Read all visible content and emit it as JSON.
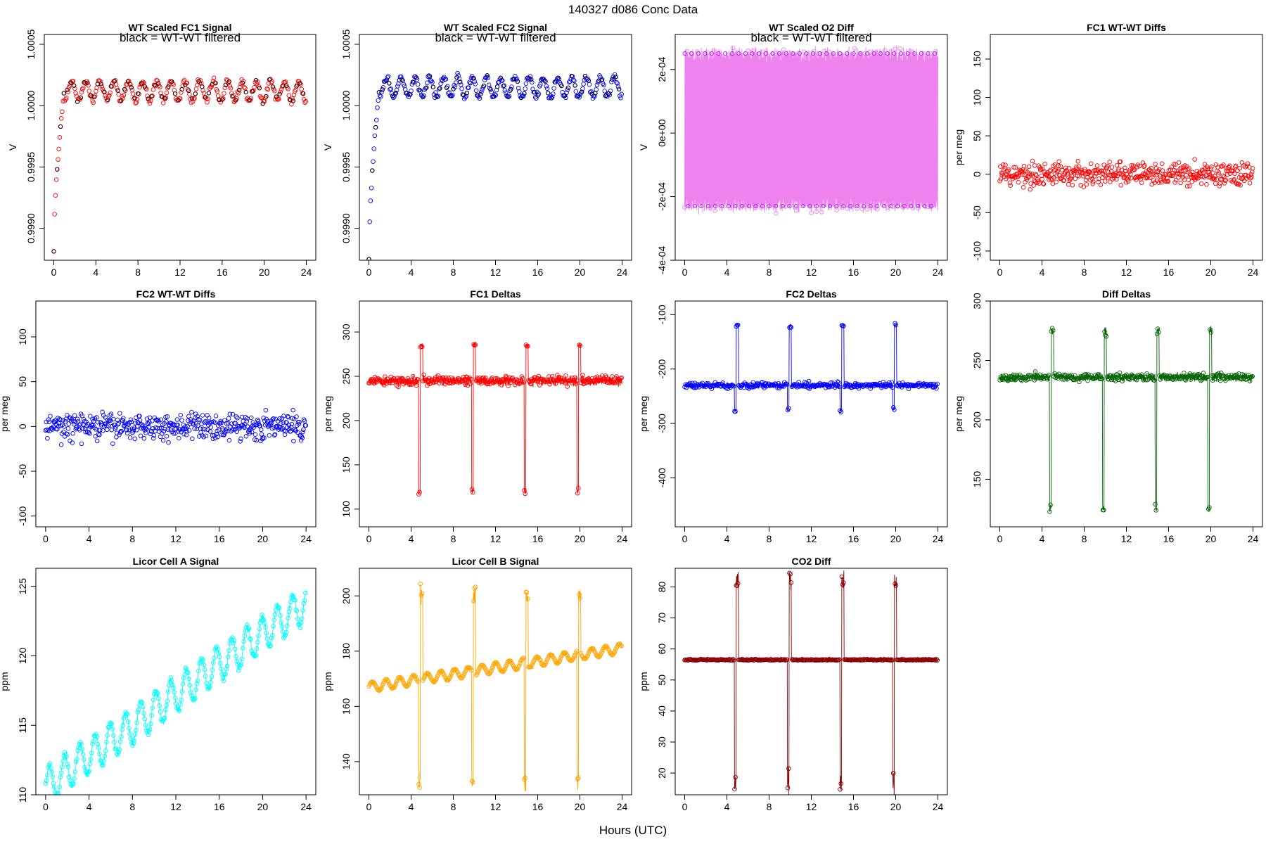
{
  "page": {
    "title": "140327    d086    Conc Data",
    "xlabel": "Hours (UTC)"
  },
  "chart_data": [
    {
      "id": "p1",
      "type": "scatter",
      "title": "WT Scaled FC1 Signal",
      "note": "black = WT-WT filtered",
      "ylabel": "V",
      "xlim": [
        -0.9,
        24.9
      ],
      "ylim": [
        0.99874,
        1.00058
      ],
      "xticks": [
        "0",
        "4",
        "8",
        "12",
        "16",
        "20",
        "24"
      ],
      "yticks": [
        "0.9990",
        "0.9995",
        "1.0000",
        "1.0005"
      ],
      "ytick_values": [
        0.999,
        0.9995,
        1.0,
        1.0005
      ],
      "series": [
        {
          "name": "FC1 signal",
          "color": "#ff0000",
          "shape": "rise-osc",
          "base": 1.00012,
          "amp": 8e-05,
          "noise": 4e-05,
          "start": 0.99882,
          "rise": 1.0
        },
        {
          "name": "WT-WT filtered",
          "color": "#000000"
        }
      ]
    },
    {
      "id": "p2",
      "type": "scatter",
      "title": "WT Scaled FC2 Signal",
      "note": "black = WT-WT filtered",
      "ylabel": "V",
      "xlim": [
        -0.9,
        24.9
      ],
      "ylim": [
        0.99874,
        1.00058
      ],
      "xticks": [
        "0",
        "4",
        "8",
        "12",
        "16",
        "20",
        "24"
      ],
      "yticks": [
        "0.9990",
        "0.9995",
        "1.0000",
        "1.0005"
      ],
      "ytick_values": [
        0.999,
        0.9995,
        1.0,
        1.0005
      ],
      "series": [
        {
          "name": "FC2 signal",
          "color": "#0000ff",
          "shape": "rise-osc",
          "base": 1.00015,
          "amp": 8e-05,
          "noise": 4e-05,
          "start": 0.99875,
          "rise": 1.0
        },
        {
          "name": "WT-WT filtered",
          "color": "#000000"
        }
      ]
    },
    {
      "id": "p3",
      "type": "scatter",
      "title": "WT Scaled O2 Diff",
      "note": "black = WT-WT filtered",
      "ylabel": "V",
      "xlim": [
        -0.9,
        24.9
      ],
      "ylim": [
        -0.0004,
        0.00031
      ],
      "xticks": [
        "0",
        "4",
        "8",
        "12",
        "16",
        "20",
        "24"
      ],
      "yticks": [
        "-4e-04",
        "-2e-04",
        "0e+00",
        "2e-04"
      ],
      "ytick_values": [
        -0.0004,
        -0.0002,
        0,
        0.0002
      ],
      "series": [
        {
          "name": "O2 diff",
          "color": "#ee82ee",
          "shape": "band",
          "hi": 0.00025,
          "lo": -0.00023,
          "noise": 3e-05
        },
        {
          "name": "WT-WT filtered",
          "color": "#a020f0"
        }
      ]
    },
    {
      "id": "p4",
      "type": "scatter",
      "title": "FC1 WT-WT Diffs",
      "ylabel": "per meg",
      "xlim": [
        -0.9,
        24.9
      ],
      "ylim": [
        -112,
        182
      ],
      "xticks": [
        "0",
        "4",
        "8",
        "12",
        "16",
        "20",
        "24"
      ],
      "yticks": [
        "-100",
        "-50",
        "0",
        "50",
        "100",
        "150"
      ],
      "ytick_values": [
        -100,
        -50,
        0,
        50,
        100,
        150
      ],
      "series": [
        {
          "name": "FC1 diffs",
          "color": "#ff0000",
          "shape": "scatter",
          "base": 0,
          "noise": 22
        }
      ]
    },
    {
      "id": "p5",
      "type": "scatter",
      "title": "FC2 WT-WT Diffs",
      "ylabel": "per meg",
      "xlim": [
        -0.9,
        24.9
      ],
      "ylim": [
        -112,
        140
      ],
      "xticks": [
        "0",
        "4",
        "8",
        "12",
        "16",
        "20",
        "24"
      ],
      "yticks": [
        "-100",
        "-50",
        "0",
        "50",
        "100"
      ],
      "ytick_values": [
        -100,
        -50,
        0,
        50,
        100
      ],
      "series": [
        {
          "name": "FC2 diffs",
          "color": "#0000ff",
          "shape": "scatter",
          "base": 0,
          "noise": 22
        }
      ]
    },
    {
      "id": "p6",
      "type": "line",
      "title": "FC1 Deltas",
      "ylabel": "per meg",
      "xlim": [
        -0.9,
        24.9
      ],
      "ylim": [
        80,
        335
      ],
      "xticks": [
        "0",
        "4",
        "8",
        "12",
        "16",
        "20",
        "24"
      ],
      "yticks": [
        "100",
        "150",
        "200",
        "250",
        "300"
      ],
      "ytick_values": [
        100,
        150,
        200,
        250,
        300
      ],
      "series": [
        {
          "name": "FC1 deltas",
          "color": "#ff0000",
          "shape": "spiky",
          "base": 245,
          "noise": 8,
          "spikes": [
            4.8,
            9.8,
            14.8,
            19.8
          ],
          "down": 120,
          "up": 285
        }
      ]
    },
    {
      "id": "p7",
      "type": "line",
      "title": "FC2 Deltas",
      "ylabel": "per meg",
      "xlim": [
        -0.9,
        24.9
      ],
      "ylim": [
        -490,
        -75
      ],
      "xticks": [
        "0",
        "4",
        "8",
        "12",
        "16",
        "20",
        "24"
      ],
      "yticks": [
        "-400",
        "-300",
        "-200",
        "-100"
      ],
      "ytick_values": [
        -400,
        -300,
        -200,
        -100
      ],
      "series": [
        {
          "name": "FC2 deltas",
          "color": "#0000ff",
          "shape": "spiky",
          "base": -230,
          "noise": 8,
          "spikes": [
            4.8,
            9.8,
            14.8,
            19.8
          ],
          "down": -275,
          "up": -120
        }
      ]
    },
    {
      "id": "p8",
      "type": "line",
      "title": "Diff Deltas",
      "ylabel": "per meg",
      "xlim": [
        -0.9,
        24.9
      ],
      "ylim": [
        110,
        300
      ],
      "xticks": [
        "0",
        "4",
        "8",
        "12",
        "16",
        "20",
        "24"
      ],
      "yticks": [
        "150",
        "200",
        "250",
        "300"
      ],
      "ytick_values": [
        150,
        200,
        250,
        300
      ],
      "series": [
        {
          "name": "Diff deltas",
          "color": "#006400",
          "shape": "spiky",
          "base": 236,
          "noise": 5,
          "spikes": [
            4.8,
            9.8,
            14.8,
            19.8
          ],
          "down": 125,
          "up": 275
        }
      ]
    },
    {
      "id": "p9",
      "type": "line",
      "title": "Licor Cell A Signal",
      "ylabel": "ppm",
      "xlim": [
        -0.9,
        24.9
      ],
      "ylim": [
        110,
        126.3
      ],
      "xticks": [
        "0",
        "4",
        "8",
        "12",
        "16",
        "20",
        "24"
      ],
      "yticks": [
        "110",
        "115",
        "120",
        "125"
      ],
      "ytick_values": [
        110,
        115,
        120,
        125
      ],
      "series": [
        {
          "name": "Cell A",
          "color": "#00ffff",
          "shape": "ramp-osc",
          "start": 110.6,
          "end": 123.8,
          "amp": 1.3
        }
      ]
    },
    {
      "id": "p10",
      "type": "line",
      "title": "Licor Cell B Signal",
      "ylabel": "ppm",
      "xlim": [
        -0.9,
        24.9
      ],
      "ylim": [
        128,
        210
      ],
      "xticks": [
        "0",
        "4",
        "8",
        "12",
        "16",
        "20",
        "24"
      ],
      "yticks": [
        "140",
        "160",
        "180",
        "200"
      ],
      "ytick_values": [
        140,
        160,
        180,
        200
      ],
      "series": [
        {
          "name": "Cell B",
          "color": "#ffa500",
          "shape": "ramp-spike",
          "start": 167,
          "end": 181,
          "amp": 1.8,
          "spikes": [
            4.8,
            9.8,
            14.8,
            19.8
          ],
          "down": 132,
          "up": 200
        }
      ]
    },
    {
      "id": "p11",
      "type": "line",
      "title": "CO2 Diff",
      "ylabel": "ppm",
      "xlim": [
        -0.9,
        24.9
      ],
      "ylim": [
        13,
        86
      ],
      "xticks": [
        "0",
        "4",
        "8",
        "12",
        "16",
        "20",
        "24"
      ],
      "yticks": [
        "20",
        "30",
        "40",
        "50",
        "60",
        "70",
        "80"
      ],
      "ytick_values": [
        20,
        30,
        40,
        50,
        60,
        70,
        80
      ],
      "series": [
        {
          "name": "CO2 diff",
          "color": "#8b0000",
          "shape": "flat-spike",
          "base": 56.5,
          "spikes": [
            4.8,
            9.8,
            14.8,
            19.8
          ],
          "down": 17,
          "up": 82
        }
      ]
    }
  ]
}
